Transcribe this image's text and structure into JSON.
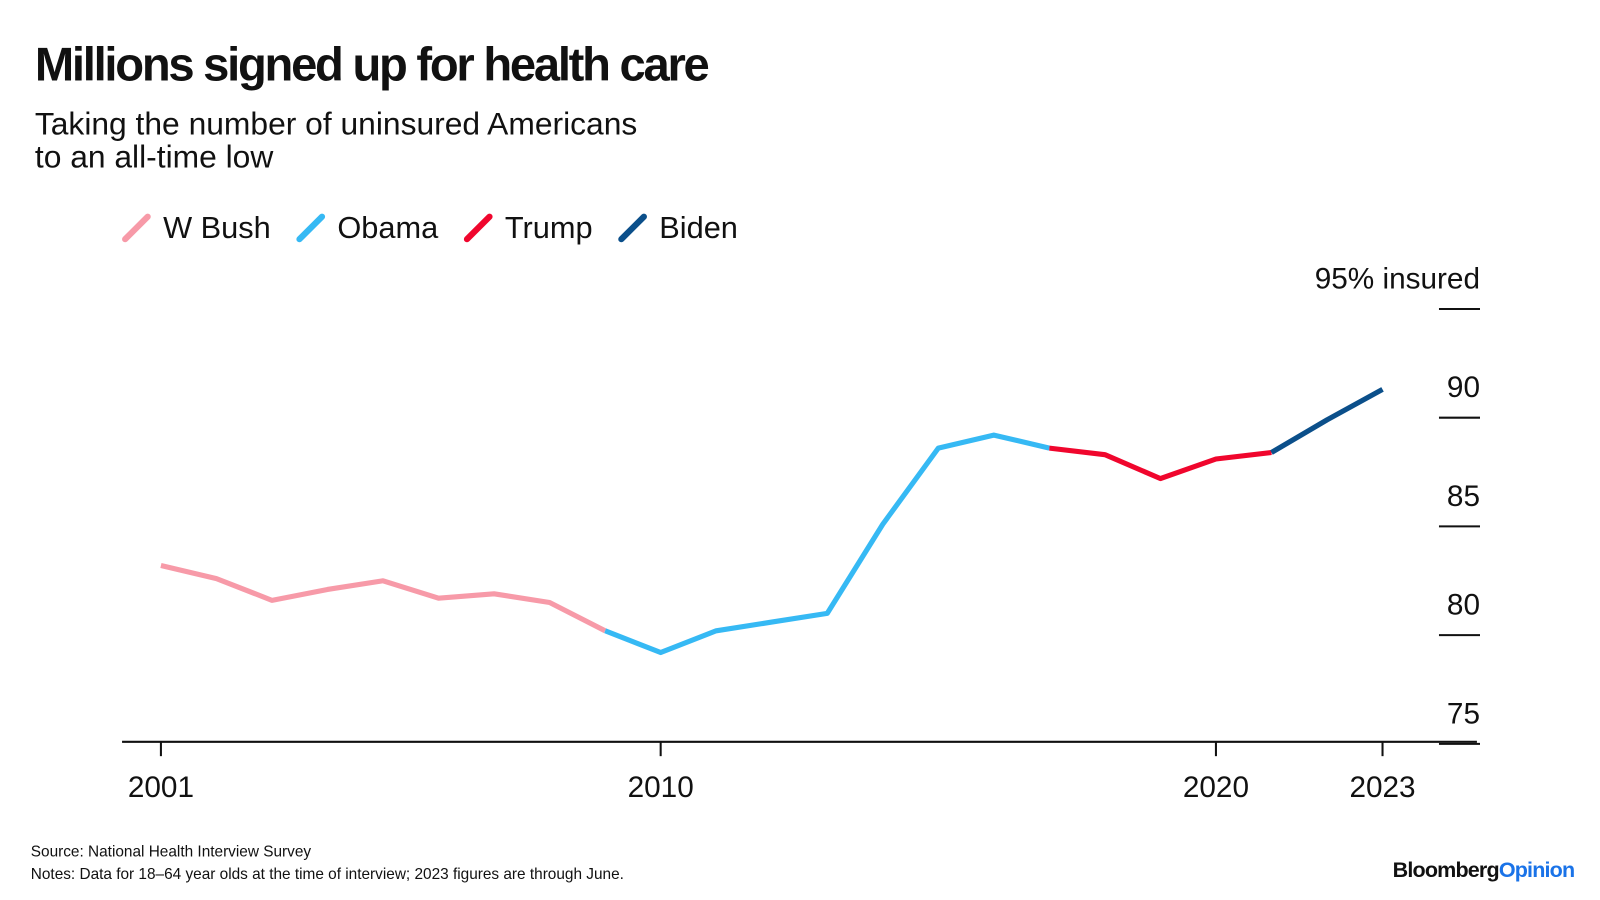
{
  "chart_data": {
    "type": "line",
    "title": "Millions signed up for health care",
    "subtitle": [
      "Taking the number of uninsured Americans",
      "to an all-time low"
    ],
    "x": [
      2001,
      2002,
      2003,
      2004,
      2005,
      2006,
      2007,
      2008,
      2009,
      2010,
      2011,
      2012,
      2013,
      2014,
      2015,
      2016,
      2017,
      2018,
      2019,
      2020,
      2021,
      2022,
      2023
    ],
    "series": [
      {
        "name": "W Bush",
        "color": "#f79aa8",
        "values": [
          83.2,
          82.6,
          81.6,
          82.1,
          82.5,
          81.7,
          81.9,
          81.5,
          80.2,
          null,
          null,
          null,
          null,
          null,
          null,
          null,
          null,
          null,
          null,
          null,
          null,
          null,
          null
        ]
      },
      {
        "name": "Obama",
        "color": "#36b9f4",
        "values": [
          null,
          null,
          null,
          null,
          null,
          null,
          null,
          null,
          80.2,
          79.2,
          80.2,
          80.6,
          81.0,
          85.1,
          88.6,
          89.2,
          88.6,
          null,
          null,
          null,
          null,
          null,
          null
        ]
      },
      {
        "name": "Trump",
        "color": "#f0062d",
        "values": [
          null,
          null,
          null,
          null,
          null,
          null,
          null,
          null,
          null,
          null,
          null,
          null,
          null,
          null,
          null,
          null,
          88.6,
          88.3,
          87.2,
          88.1,
          88.4,
          null,
          null
        ]
      },
      {
        "name": "Biden",
        "color": "#0b4f8a",
        "values": [
          null,
          null,
          null,
          null,
          null,
          null,
          null,
          null,
          null,
          null,
          null,
          null,
          null,
          null,
          null,
          null,
          null,
          null,
          null,
          null,
          88.4,
          89.9,
          91.3
        ]
      }
    ],
    "xlim": [
      2000.3,
      2024.7
    ],
    "xticks": [
      2001,
      2010,
      2020,
      2023
    ],
    "ylim": [
      75,
      95
    ],
    "yticks": [
      75,
      80,
      85,
      90,
      {
        "value": 95,
        "label": "95% insured"
      }
    ],
    "legend": "top-left",
    "source": "Source: National Health Interview Survey",
    "notes": "Notes: Data for 18–64 year olds at the time of interview; 2023 figures are through June.",
    "brand": [
      "Bloomberg",
      "Opinion"
    ]
  }
}
